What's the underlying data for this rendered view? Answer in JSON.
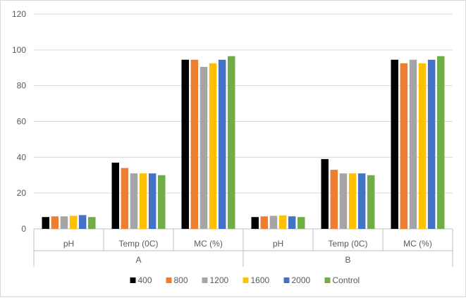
{
  "chart_data": {
    "type": "bar",
    "title": "",
    "xlabel": "",
    "ylabel": "",
    "ylim": [
      0,
      120
    ],
    "y_ticks": [
      0,
      20,
      40,
      60,
      80,
      100,
      120
    ],
    "y_tick_labels": [
      "0",
      "20",
      "40",
      "60",
      "80",
      "100",
      "120"
    ],
    "grid": true,
    "legend_position": "bottom",
    "groups": [
      {
        "label": "A",
        "categories": [
          "pH",
          "Temp (0C)",
          "MC (%)"
        ]
      },
      {
        "label": "B",
        "categories": [
          "pH",
          "Temp (0C)",
          "MC (%)"
        ]
      }
    ],
    "series": [
      {
        "name": "400",
        "color": "#000000",
        "values": [
          6.6,
          37,
          94.5,
          6.6,
          39,
          94.5
        ]
      },
      {
        "name": "800",
        "color": "#ed7d31",
        "values": [
          7.0,
          34,
          94.5,
          7.0,
          33,
          92.5
        ]
      },
      {
        "name": "1200",
        "color": "#a5a5a5",
        "values": [
          7.0,
          31,
          90.5,
          7.3,
          31,
          94.5
        ]
      },
      {
        "name": "1600",
        "color": "#ffc000",
        "values": [
          7.3,
          31,
          92.5,
          7.5,
          31,
          92.5
        ]
      },
      {
        "name": "2000",
        "color": "#4472c4",
        "values": [
          7.7,
          31,
          94.5,
          7.0,
          31,
          94.5
        ]
      },
      {
        "name": "Control",
        "color": "#70ad47",
        "values": [
          6.6,
          30,
          96.5,
          6.6,
          30,
          96.5
        ]
      }
    ]
  }
}
